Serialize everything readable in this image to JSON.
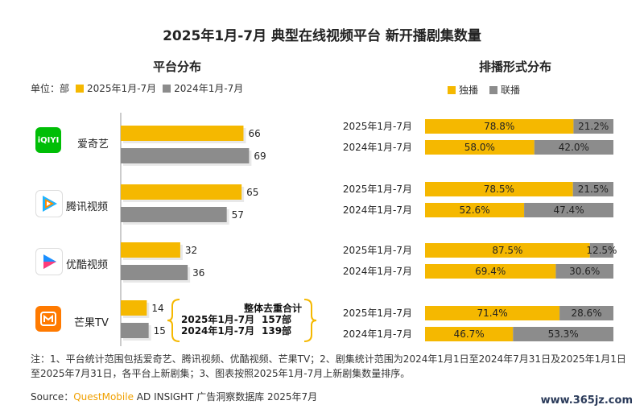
{
  "title": "2025年1月-7月 典型在线视频平台 新开播剧集数量",
  "left_panel": {
    "subtitle": "平台分布",
    "unit_label": "单位：部",
    "legend": [
      "2025年1月-7月",
      "2024年1月-7月"
    ]
  },
  "right_panel": {
    "subtitle": "排播形式分布",
    "legend": [
      "独播",
      "联播"
    ]
  },
  "platforms": [
    {
      "name": "爱奇艺",
      "logo_text": "iQIYI"
    },
    {
      "name": "腾讯视频",
      "logo_text": ""
    },
    {
      "name": "优酷视频",
      "logo_text": ""
    },
    {
      "name": "芒果TV",
      "logo_text": ""
    }
  ],
  "dedup": {
    "header": "整体去重合计",
    "rows": [
      {
        "period": "2025年1月-7月",
        "value": "157部"
      },
      {
        "period": "2024年1月-7月",
        "value": "139部"
      }
    ]
  },
  "chart_data": [
    {
      "type": "bar",
      "orientation": "horizontal",
      "title": "平台分布",
      "unit": "部",
      "categories": [
        "爱奇艺",
        "腾讯视频",
        "优酷视频",
        "芒果TV"
      ],
      "series": [
        {
          "name": "2025年1月-7月",
          "values": [
            66,
            65,
            32,
            14
          ],
          "color": "#F5B800"
        },
        {
          "name": "2024年1月-7月",
          "values": [
            69,
            57,
            36,
            15
          ],
          "color": "#8C8C8C"
        }
      ],
      "xlim": [
        0,
        70
      ]
    },
    {
      "type": "bar",
      "orientation": "horizontal",
      "stacked": true,
      "title": "排播形式分布",
      "rows": [
        {
          "label": "2025年1月-7月",
          "platform": "爱奇艺",
          "独播": 78.8,
          "联播": 21.2
        },
        {
          "label": "2024年1月-7月",
          "platform": "爱奇艺",
          "独播": 58.0,
          "联播": 42.0
        },
        {
          "label": "2025年1月-7月",
          "platform": "腾讯视频",
          "独播": 78.5,
          "联播": 21.5
        },
        {
          "label": "2024年1月-7月",
          "platform": "腾讯视频",
          "独播": 52.6,
          "联播": 47.4
        },
        {
          "label": "2025年1月-7月",
          "platform": "优酷视频",
          "独播": 87.5,
          "联播": 12.5
        },
        {
          "label": "2024年1月-7月",
          "platform": "优酷视频",
          "独播": 69.4,
          "联播": 30.6
        },
        {
          "label": "2025年1月-7月",
          "platform": "芒果TV",
          "独播": 71.4,
          "联播": 28.6
        },
        {
          "label": "2024年1月-7月",
          "platform": "芒果TV",
          "独播": 46.7,
          "联播": 53.3
        }
      ],
      "series_colors": {
        "独播": "#F5B800",
        "联播": "#8C8C8C"
      }
    }
  ],
  "notes": "注：1、平台统计范围包括爱奇艺、腾讯视频、优酷视频、芒果TV；2、剧集统计范围为2024年1月1日至2024年7月31日及2025年1月1日至2025年7月31日，各平台上新剧集；3、图表按照2025年1月-7月上新剧集数量排序。",
  "source": {
    "prefix": "Source：",
    "brand": "QuestMobile",
    "rest": " AD INSIGHT 广告洞察数据库 2025年7月"
  },
  "watermark_site": "www.365jz.com",
  "colors": {
    "accent": "#F5B800",
    "gray": "#8C8C8C"
  }
}
